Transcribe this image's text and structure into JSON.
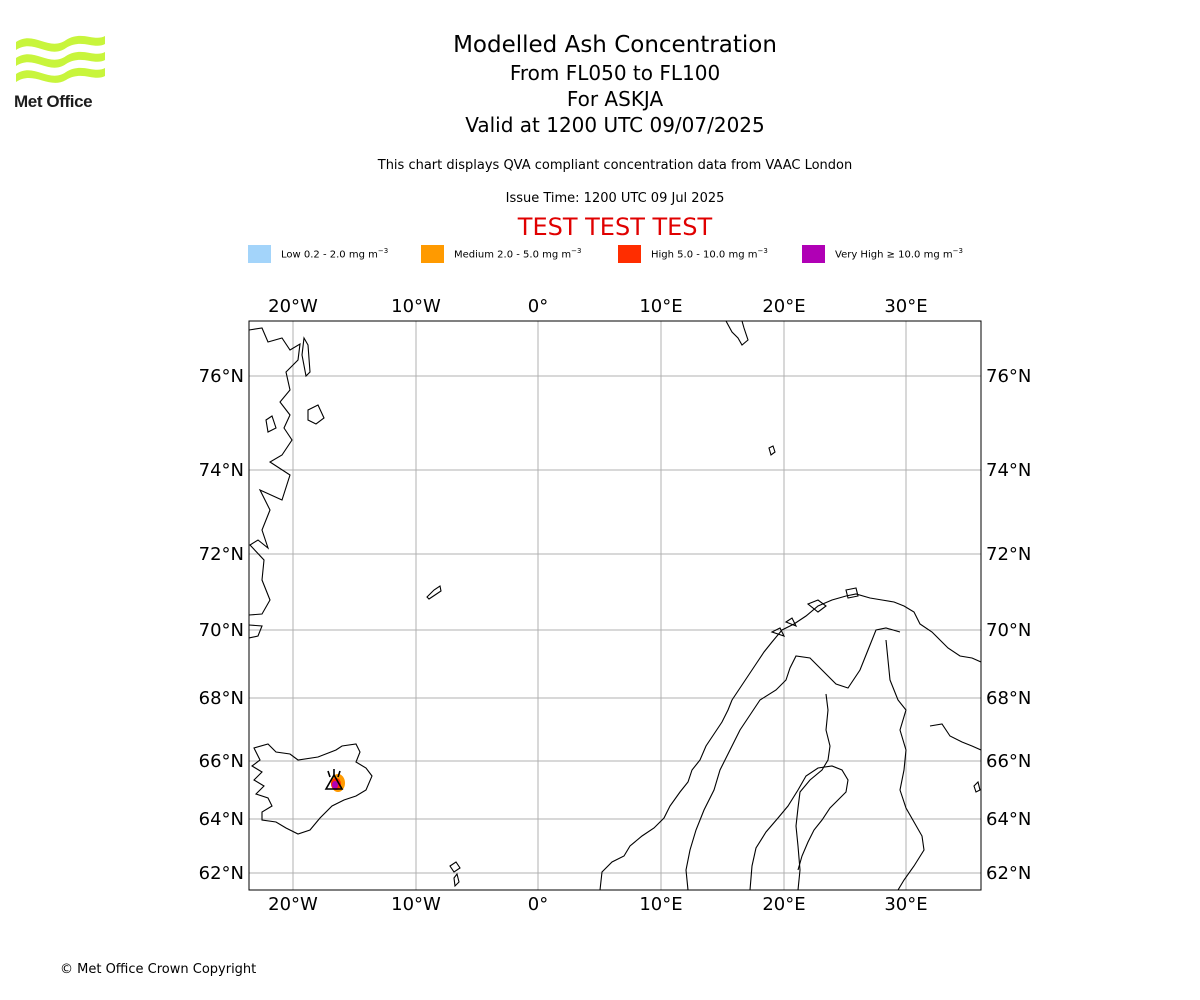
{
  "logo": {
    "name": "Met Office"
  },
  "title": "Modelled Ash Concentration",
  "subtitle_levels": "From FL050 to FL100",
  "subtitle_volcano": "For ASKJA",
  "subtitle_valid": "Valid at 1200 UTC 09/07/2025",
  "description": "This chart displays QVA compliant concentration data from VAAC London",
  "issue_time": "Issue Time: 1200 UTC 09 Jul 2025",
  "test_banner": "TEST TEST TEST",
  "legend": [
    {
      "label": "Low 0.2 - 2.0 mg m",
      "sup": "−3",
      "color": "#a3d4fa"
    },
    {
      "label": "Medium 2.0 - 5.0 mg m",
      "sup": "−3",
      "color": "#ff9a00"
    },
    {
      "label": "High 5.0 - 10.0 mg m",
      "sup": "−3",
      "color": "#ff2d00"
    },
    {
      "label": "Very High  ≥  10.0 mg m",
      "sup": "−3",
      "color": "#b000b5"
    }
  ],
  "map": {
    "lon_labels": [
      "20°W",
      "10°W",
      "0°",
      "10°E",
      "20°E",
      "30°E"
    ],
    "lat_labels": [
      "76°N",
      "74°N",
      "72°N",
      "70°N",
      "68°N",
      "66°N",
      "64°N",
      "62°N"
    ],
    "volcano_marker": "volcano-triangle-icon"
  },
  "copyright": "© Met Office Crown Copyright"
}
